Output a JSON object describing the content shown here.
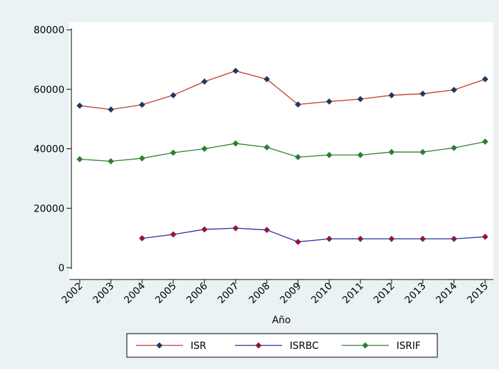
{
  "chart_data": {
    "type": "line",
    "title": "",
    "xlabel": "Año",
    "ylabel": "",
    "categories": [
      "2002",
      "2003",
      "2004",
      "2005",
      "2006",
      "2007",
      "2008",
      "2009",
      "2010",
      "2011",
      "2012",
      "2013",
      "2014",
      "2015"
    ],
    "ylim": [
      0,
      80000
    ],
    "yticks": [
      0,
      20000,
      40000,
      60000,
      80000
    ],
    "ytick_labels": [
      "0",
      "20000",
      "40000",
      "60000",
      "80000"
    ],
    "grid": false,
    "legend_position": "bottom",
    "series": [
      {
        "name": "ISR",
        "line_color": "#c0392b",
        "marker_color": "#1f3a5f",
        "values": [
          54500,
          53200,
          54800,
          58000,
          62600,
          66200,
          63400,
          54900,
          55900,
          56700,
          58000,
          58500,
          59800,
          63400
        ]
      },
      {
        "name": "ISRBC",
        "line_color": "#1f2fa0",
        "marker_color": "#8b1a3a",
        "values": [
          null,
          null,
          9900,
          11200,
          12900,
          13300,
          12700,
          8700,
          9700,
          9700,
          9700,
          9700,
          9700,
          10400
        ]
      },
      {
        "name": "ISRIF",
        "line_color": "#2e7d2e",
        "marker_color": "#2e7d2e",
        "values": [
          36500,
          35800,
          36800,
          38700,
          40000,
          41800,
          40500,
          37200,
          37900,
          37900,
          38900,
          38900,
          40300,
          42400
        ]
      }
    ]
  }
}
